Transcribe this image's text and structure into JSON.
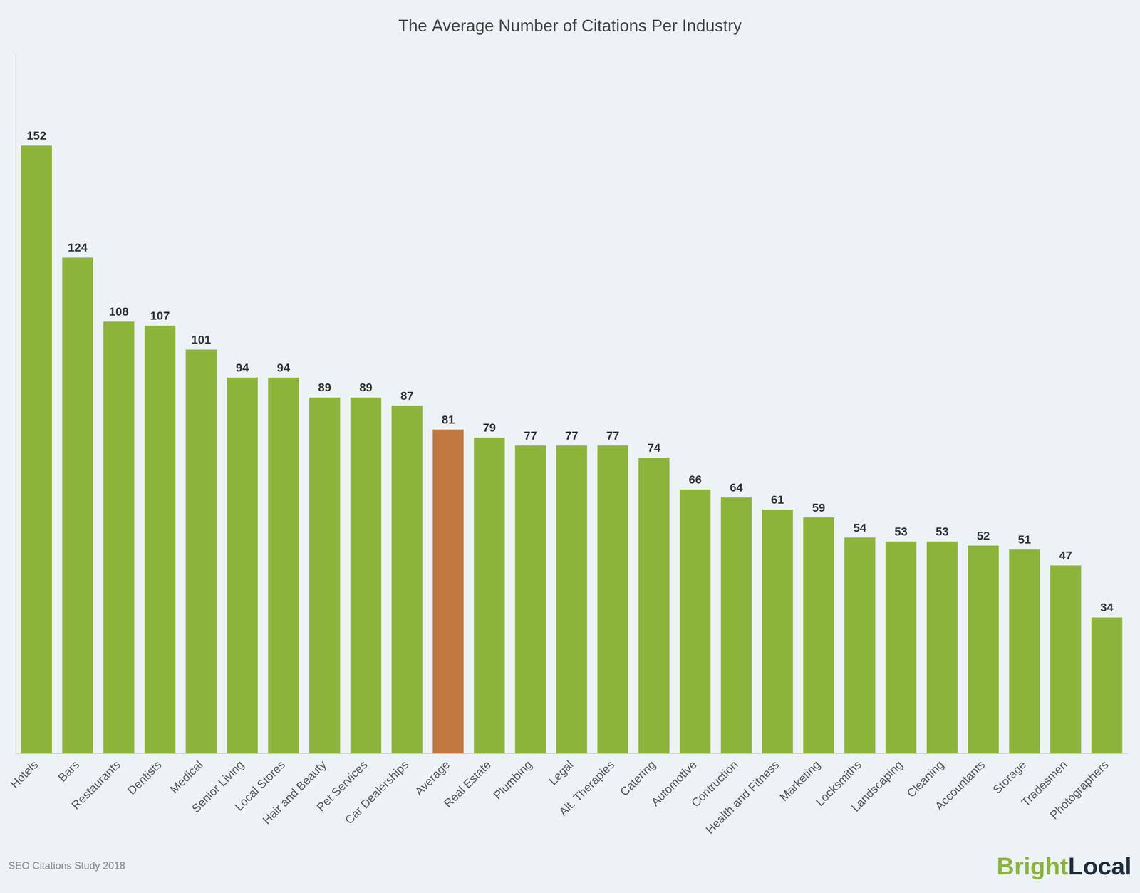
{
  "chart_data": {
    "type": "bar",
    "title": "The Average Number of Citations Per Industry",
    "categories": [
      "Hotels",
      "Bars",
      "Restaurants",
      "Dentists",
      "Medical",
      "Senior Living",
      "Local Stores",
      "Hair and Beauty",
      "Pet Services",
      "Car Dealerships",
      "Average",
      "Real Estate",
      "Plumbing",
      "Legal",
      "Alt. Therapies",
      "Catering",
      "Automotive",
      "Contruction",
      "Health and Fitness",
      "Marketing",
      "Locksmiths",
      "Landscaping",
      "Cleaning",
      "Accountants",
      "Storage",
      "Tradesmen",
      "Photographers"
    ],
    "values": [
      152,
      124,
      108,
      107,
      101,
      94,
      94,
      89,
      89,
      87,
      81,
      79,
      77,
      77,
      77,
      74,
      66,
      64,
      61,
      59,
      54,
      53,
      53,
      52,
      51,
      47,
      34
    ],
    "colors": [
      "#8db43a",
      "#8db43a",
      "#8db43a",
      "#8db43a",
      "#8db43a",
      "#8db43a",
      "#8db43a",
      "#8db43a",
      "#8db43a",
      "#8db43a",
      "#c07840",
      "#8db43a",
      "#8db43a",
      "#8db43a",
      "#8db43a",
      "#8db43a",
      "#8db43a",
      "#8db43a",
      "#8db43a",
      "#8db43a",
      "#8db43a",
      "#8db43a",
      "#8db43a",
      "#8db43a",
      "#8db43a",
      "#8db43a",
      "#8db43a"
    ],
    "ylim": [
      0,
      175
    ],
    "grid": false,
    "data_labels": true,
    "tick_labels": "x",
    "annotations": [
      {
        "text": "SEO Citations Study 2018"
      },
      {
        "text": "Bright",
        "color": "#8db43a"
      },
      {
        "text": "Local",
        "color": "#1e2d3d"
      }
    ]
  }
}
